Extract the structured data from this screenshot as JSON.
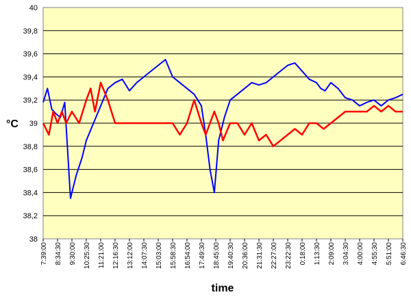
{
  "chart_data": {
    "type": "line",
    "title": "",
    "xlabel": "time",
    "ylabel": "°C",
    "ylim": [
      38,
      40
    ],
    "yticks": [
      "38",
      "38,2",
      "38,4",
      "38,6",
      "38,8",
      "39",
      "39,2",
      "39,4",
      "39,6",
      "39,8",
      "40"
    ],
    "xticks": [
      "7:39:00",
      "8:34:30",
      "9:30:00",
      "10:25:30",
      "11:21:00",
      "12:16:30",
      "13:12:00",
      "14:07:30",
      "15:03:00",
      "15:58:30",
      "16:54:00",
      "17:49:30",
      "18:45:00",
      "19:40:30",
      "20:36:00",
      "21:31:30",
      "22:27:00",
      "23:22:30",
      "0:18:00",
      "1:13:30",
      "2:09:00",
      "3:04:30",
      "4:00:00",
      "4:55:30",
      "5:51:00",
      "6:46:30"
    ],
    "grid": true,
    "plot_background": "#ffffc0",
    "series": [
      {
        "color": "#0000ff",
        "x": [
          0,
          0.3,
          0.6,
          0.9,
          1.2,
          1.5,
          1.9,
          2.3,
          2.7,
          3,
          3.5,
          4,
          4.5,
          5,
          5.5,
          6,
          6.5,
          7,
          7.5,
          8,
          8.5,
          9,
          9.5,
          10,
          10.5,
          11,
          11.3,
          11.6,
          11.9,
          12.2,
          12.6,
          13,
          13.5,
          14,
          14.5,
          15,
          15.5,
          16,
          16.5,
          17,
          17.5,
          18,
          18.5,
          19,
          19.3,
          19.6,
          20,
          20.5,
          21,
          21.5,
          22,
          22.5,
          23,
          23.5,
          24,
          24.5,
          25
        ],
        "values": [
          39.18,
          39.3,
          39.12,
          39.08,
          39.05,
          39.18,
          38.35,
          38.55,
          38.7,
          38.85,
          39.0,
          39.15,
          39.3,
          39.35,
          39.38,
          39.28,
          39.35,
          39.4,
          39.45,
          39.5,
          39.55,
          39.4,
          39.35,
          39.3,
          39.25,
          39.15,
          38.9,
          38.6,
          38.4,
          38.85,
          39.05,
          39.2,
          39.25,
          39.3,
          39.35,
          39.33,
          39.35,
          39.4,
          39.45,
          39.5,
          39.52,
          39.45,
          39.38,
          39.35,
          39.3,
          39.28,
          39.35,
          39.3,
          39.22,
          39.2,
          39.15,
          39.18,
          39.2,
          39.15,
          39.2,
          39.22,
          39.25
        ]
      },
      {
        "color": "#ff0000",
        "x": [
          0,
          0.4,
          0.7,
          1,
          1.3,
          1.6,
          2,
          2.5,
          3,
          3.3,
          3.6,
          4,
          4.5,
          5,
          5.5,
          6,
          6.5,
          7,
          7.5,
          8,
          8.5,
          9,
          9.5,
          10,
          10.5,
          11,
          11.3,
          11.6,
          11.9,
          12.2,
          12.5,
          13,
          13.5,
          14,
          14.5,
          15,
          15.5,
          16,
          16.5,
          17,
          17.5,
          18,
          18.5,
          19,
          19.5,
          20,
          20.5,
          21,
          21.5,
          22,
          22.5,
          23,
          23.5,
          24,
          24.5,
          25
        ],
        "values": [
          39.0,
          38.9,
          39.1,
          39.0,
          39.1,
          39.0,
          39.1,
          39.0,
          39.2,
          39.3,
          39.1,
          39.35,
          39.2,
          39.0,
          39.0,
          39.0,
          39.0,
          39.0,
          39.0,
          39.0,
          39.0,
          39.0,
          38.9,
          39.0,
          39.2,
          39.0,
          38.9,
          39.0,
          39.1,
          39.0,
          38.85,
          39.0,
          39.0,
          38.9,
          39.0,
          38.85,
          38.9,
          38.8,
          38.85,
          38.9,
          38.95,
          38.9,
          39.0,
          39.0,
          38.95,
          39.0,
          39.05,
          39.1,
          39.1,
          39.1,
          39.1,
          39.15,
          39.1,
          39.15,
          39.1,
          39.1
        ]
      }
    ]
  }
}
